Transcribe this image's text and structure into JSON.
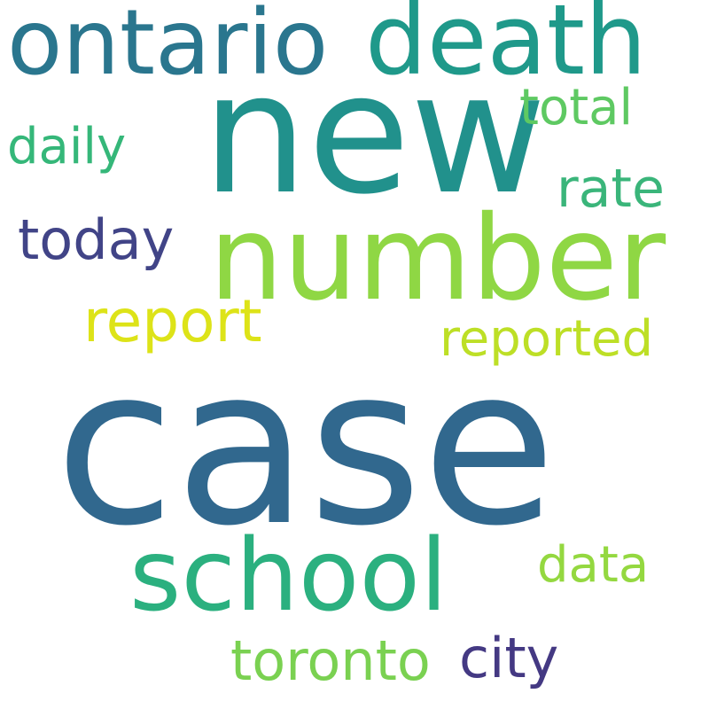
{
  "words": {
    "case": {
      "text": "case",
      "color": "#31688e"
    },
    "new": {
      "text": "new",
      "color": "#21918c"
    },
    "number": {
      "text": "number",
      "color": "#8fd744"
    },
    "ontario": {
      "text": "ontario",
      "color": "#2a768e"
    },
    "death": {
      "text": "death",
      "color": "#1f998a"
    },
    "school": {
      "text": "school",
      "color": "#2bb07f"
    },
    "total": {
      "text": "total",
      "color": "#5ec962"
    },
    "daily": {
      "text": "daily",
      "color": "#35b779"
    },
    "rate": {
      "text": "rate",
      "color": "#3ab57a"
    },
    "today": {
      "text": "today",
      "color": "#414487"
    },
    "report": {
      "text": "report",
      "color": "#dde318"
    },
    "reported": {
      "text": "reported",
      "color": "#bddf26"
    },
    "data": {
      "text": "data",
      "color": "#94d840"
    },
    "toronto": {
      "text": "toronto",
      "color": "#7ad151"
    },
    "city": {
      "text": "city",
      "color": "#443983"
    }
  }
}
